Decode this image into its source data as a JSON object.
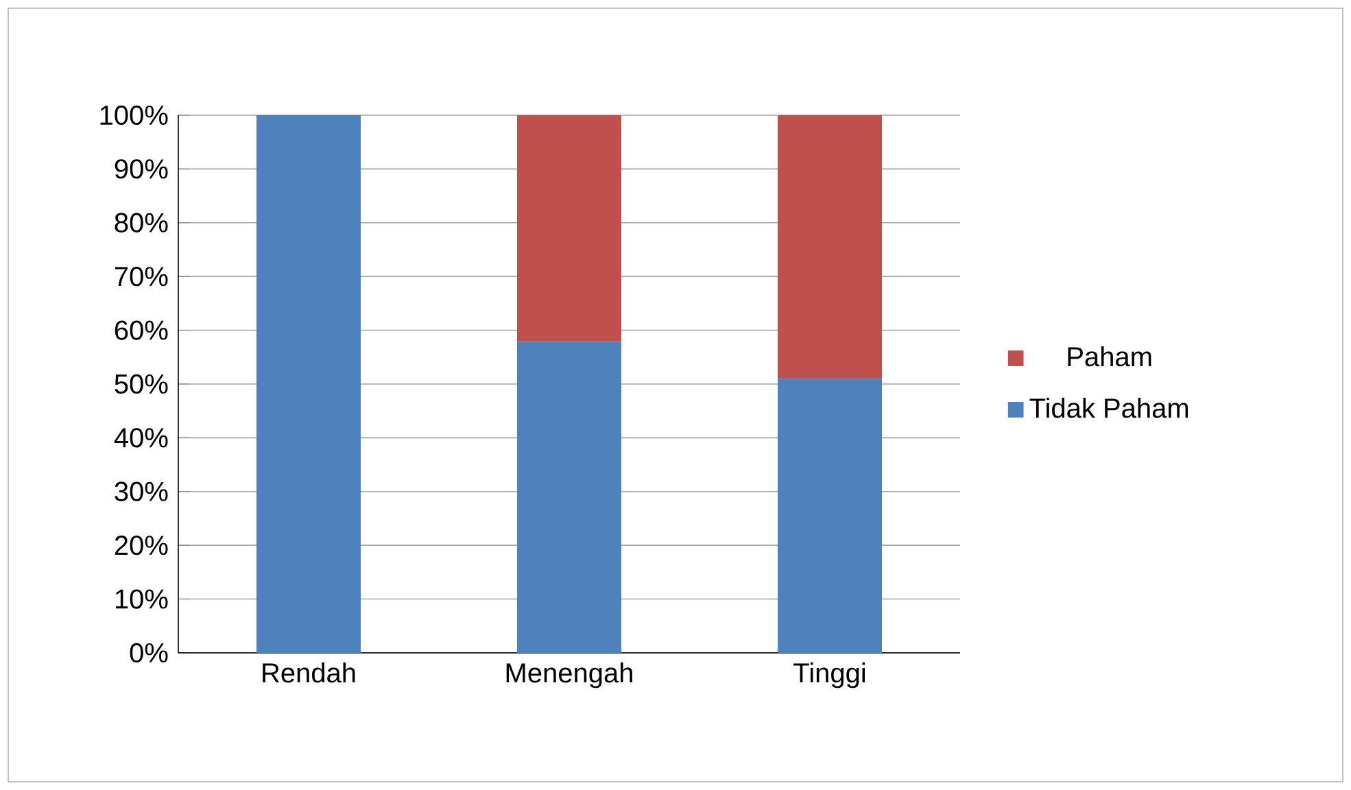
{
  "chart_data": {
    "type": "bar",
    "stacked": true,
    "categories": [
      "Rendah",
      "Menengah",
      "Tinggi"
    ],
    "series": [
      {
        "name": "Tidak Paham",
        "color": "#4f81bd",
        "values": [
          100,
          58,
          51
        ]
      },
      {
        "name": "Paham",
        "color": "#c0504d",
        "values": [
          0,
          42,
          49
        ]
      }
    ],
    "ylim": [
      0,
      100
    ],
    "yticks": [
      {
        "value": 0,
        "label": "0%"
      },
      {
        "value": 10,
        "label": "10%"
      },
      {
        "value": 20,
        "label": "20%"
      },
      {
        "value": 30,
        "label": "30%"
      },
      {
        "value": 40,
        "label": "40%"
      },
      {
        "value": 50,
        "label": "50%"
      },
      {
        "value": 60,
        "label": "60%"
      },
      {
        "value": 70,
        "label": "70%"
      },
      {
        "value": 80,
        "label": "80%"
      },
      {
        "value": 90,
        "label": "90%"
      },
      {
        "value": 100,
        "label": "100%"
      }
    ],
    "grid": "y",
    "legend": "right"
  }
}
